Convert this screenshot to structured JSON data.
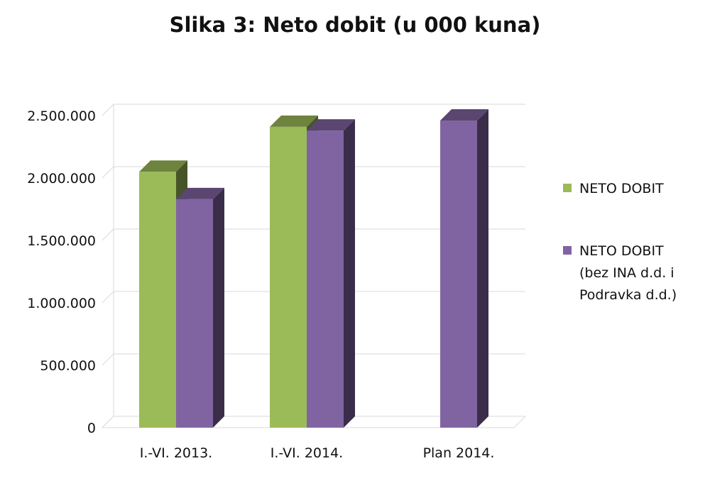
{
  "chart_data": {
    "type": "bar",
    "title": "Slika 3: Neto dobit (u 000 kuna)",
    "categories": [
      "I.-VI. 2013.",
      "I.-VI. 2014.",
      "Plan 2014."
    ],
    "series": [
      {
        "name": "NETO DOBIT",
        "color": "#9bbb59",
        "values": [
          2050000,
          2410000,
          null
        ]
      },
      {
        "name_lines": [
          "NETO DOBIT",
          "(bez INA d.d. i",
          "Podravka d.d.)"
        ],
        "color": "#8064a2",
        "values": [
          1830000,
          2380000,
          2460000
        ]
      }
    ],
    "y_ticks": [
      "0",
      "500.000",
      "1.000.000",
      "1.500.000",
      "2.000.000",
      "2.500.000"
    ],
    "ylim": [
      0,
      2500000
    ],
    "grid": true,
    "legend": "right"
  }
}
